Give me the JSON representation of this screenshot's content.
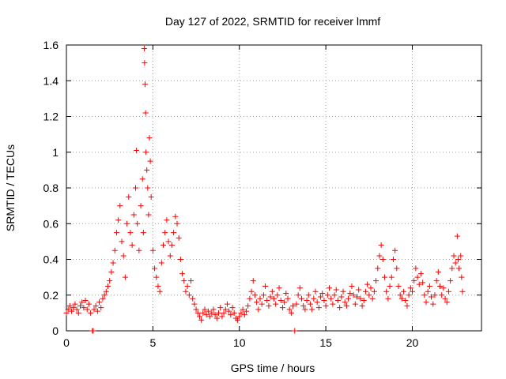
{
  "chart_data": {
    "type": "scatter",
    "title": "Day 127 of 2022, SRMTID for receiver lmmf",
    "xlabel": "GPS time / hours",
    "ylabel": "SRMTID / TECUs",
    "xlim": [
      0,
      24
    ],
    "ylim": [
      0,
      1.6
    ],
    "xticks": [
      0,
      5,
      10,
      15,
      20
    ],
    "xtick_labels": [
      "0",
      "5",
      "10",
      "15",
      "20"
    ],
    "yticks": [
      0,
      0.2,
      0.4,
      0.6,
      0.8,
      1,
      1.2,
      1.4,
      1.6
    ],
    "ytick_labels": [
      "0",
      "0.2",
      "0.4",
      "0.6",
      "0.8",
      "1",
      "1.2",
      "1.4",
      "1.6"
    ],
    "grid": true,
    "marker": "+",
    "color": "#ff0000",
    "series": [
      {
        "name": "SRMTID",
        "points": [
          [
            0.0,
            0.1
          ],
          [
            0.1,
            0.12
          ],
          [
            0.2,
            0.14
          ],
          [
            0.3,
            0.11
          ],
          [
            0.4,
            0.13
          ],
          [
            0.5,
            0.15
          ],
          [
            0.6,
            0.12
          ],
          [
            0.7,
            0.1
          ],
          [
            0.8,
            0.14
          ],
          [
            0.9,
            0.16
          ],
          [
            1.0,
            0.13
          ],
          [
            1.1,
            0.17
          ],
          [
            1.2,
            0.12
          ],
          [
            1.3,
            0.15
          ],
          [
            1.4,
            0.1
          ],
          [
            1.5,
            0.0
          ],
          [
            1.55,
            0.0
          ],
          [
            1.6,
            0.12
          ],
          [
            1.7,
            0.14
          ],
          [
            1.8,
            0.11
          ],
          [
            1.9,
            0.16
          ],
          [
            2.0,
            0.13
          ],
          [
            2.1,
            0.18
          ],
          [
            2.2,
            0.2
          ],
          [
            2.3,
            0.22
          ],
          [
            2.4,
            0.25
          ],
          [
            2.5,
            0.28
          ],
          [
            2.6,
            0.33
          ],
          [
            2.7,
            0.38
          ],
          [
            2.8,
            0.45
          ],
          [
            2.9,
            0.55
          ],
          [
            3.0,
            0.62
          ],
          [
            3.1,
            0.7
          ],
          [
            3.2,
            0.5
          ],
          [
            3.3,
            0.42
          ],
          [
            3.4,
            0.3
          ],
          [
            3.5,
            0.6
          ],
          [
            3.6,
            0.75
          ],
          [
            3.7,
            0.55
          ],
          [
            3.8,
            0.48
          ],
          [
            3.9,
            0.65
          ],
          [
            4.0,
            0.8
          ],
          [
            4.05,
            1.01
          ],
          [
            4.1,
            0.6
          ],
          [
            4.2,
            0.45
          ],
          [
            4.3,
            0.7
          ],
          [
            4.4,
            0.85
          ],
          [
            4.45,
            0.55
          ],
          [
            4.5,
            1.58
          ],
          [
            4.52,
            1.5
          ],
          [
            4.55,
            1.38
          ],
          [
            4.58,
            1.22
          ],
          [
            4.6,
            1.0
          ],
          [
            4.65,
            0.9
          ],
          [
            4.7,
            0.8
          ],
          [
            4.75,
            0.65
          ],
          [
            4.8,
            1.08
          ],
          [
            4.85,
            0.95
          ],
          [
            4.9,
            0.75
          ],
          [
            5.0,
            0.45
          ],
          [
            5.1,
            0.35
          ],
          [
            5.2,
            0.3
          ],
          [
            5.3,
            0.25
          ],
          [
            5.4,
            0.22
          ],
          [
            5.5,
            0.38
          ],
          [
            5.6,
            0.48
          ],
          [
            5.7,
            0.55
          ],
          [
            5.8,
            0.62
          ],
          [
            5.9,
            0.5
          ],
          [
            6.0,
            0.42
          ],
          [
            6.1,
            0.48
          ],
          [
            6.2,
            0.55
          ],
          [
            6.3,
            0.64
          ],
          [
            6.4,
            0.6
          ],
          [
            6.5,
            0.52
          ],
          [
            6.6,
            0.4
          ],
          [
            6.7,
            0.32
          ],
          [
            6.8,
            0.28
          ],
          [
            6.9,
            0.22
          ],
          [
            7.0,
            0.25
          ],
          [
            7.1,
            0.2
          ],
          [
            7.2,
            0.28
          ],
          [
            7.3,
            0.18
          ],
          [
            7.4,
            0.15
          ],
          [
            7.5,
            0.12
          ],
          [
            7.6,
            0.1
          ],
          [
            7.7,
            0.08
          ],
          [
            7.8,
            0.06
          ],
          [
            7.9,
            0.1
          ],
          [
            8.0,
            0.12
          ],
          [
            8.1,
            0.09
          ],
          [
            8.2,
            0.11
          ],
          [
            8.3,
            0.08
          ],
          [
            8.4,
            0.1
          ],
          [
            8.5,
            0.12
          ],
          [
            8.6,
            0.09
          ],
          [
            8.7,
            0.07
          ],
          [
            8.8,
            0.1
          ],
          [
            8.9,
            0.13
          ],
          [
            9.0,
            0.08
          ],
          [
            9.1,
            0.1
          ],
          [
            9.2,
            0.12
          ],
          [
            9.3,
            0.15
          ],
          [
            9.4,
            0.11
          ],
          [
            9.5,
            0.09
          ],
          [
            9.6,
            0.13
          ],
          [
            9.7,
            0.1
          ],
          [
            9.8,
            0.07
          ],
          [
            9.9,
            0.06
          ],
          [
            10.0,
            0.08
          ],
          [
            10.1,
            0.1
          ],
          [
            10.2,
            0.12
          ],
          [
            10.3,
            0.09
          ],
          [
            10.4,
            0.11
          ],
          [
            10.5,
            0.14
          ],
          [
            10.6,
            0.18
          ],
          [
            10.7,
            0.22
          ],
          [
            10.8,
            0.28
          ],
          [
            10.9,
            0.2
          ],
          [
            11.0,
            0.16
          ],
          [
            11.1,
            0.12
          ],
          [
            11.2,
            0.18
          ],
          [
            11.3,
            0.15
          ],
          [
            11.4,
            0.2
          ],
          [
            11.5,
            0.25
          ],
          [
            11.6,
            0.17
          ],
          [
            11.7,
            0.14
          ],
          [
            11.8,
            0.19
          ],
          [
            11.9,
            0.22
          ],
          [
            12.0,
            0.18
          ],
          [
            12.1,
            0.15
          ],
          [
            12.2,
            0.2
          ],
          [
            12.3,
            0.24
          ],
          [
            12.4,
            0.17
          ],
          [
            12.5,
            0.13
          ],
          [
            12.6,
            0.16
          ],
          [
            12.7,
            0.21
          ],
          [
            12.8,
            0.18
          ],
          [
            12.9,
            0.12
          ],
          [
            13.0,
            0.1
          ],
          [
            13.1,
            0.14
          ],
          [
            13.2,
            0.0
          ],
          [
            13.3,
            0.15
          ],
          [
            13.4,
            0.2
          ],
          [
            13.5,
            0.24
          ],
          [
            13.6,
            0.18
          ],
          [
            13.7,
            0.14
          ],
          [
            13.8,
            0.12
          ],
          [
            13.9,
            0.17
          ],
          [
            14.0,
            0.2
          ],
          [
            14.1,
            0.15
          ],
          [
            14.2,
            0.12
          ],
          [
            14.3,
            0.18
          ],
          [
            14.4,
            0.22
          ],
          [
            14.5,
            0.16
          ],
          [
            14.6,
            0.13
          ],
          [
            14.7,
            0.19
          ],
          [
            14.8,
            0.21
          ],
          [
            14.9,
            0.17
          ],
          [
            15.0,
            0.14
          ],
          [
            15.1,
            0.2
          ],
          [
            15.2,
            0.24
          ],
          [
            15.3,
            0.18
          ],
          [
            15.4,
            0.15
          ],
          [
            15.5,
            0.2
          ],
          [
            15.6,
            0.23
          ],
          [
            15.7,
            0.17
          ],
          [
            15.8,
            0.13
          ],
          [
            15.9,
            0.19
          ],
          [
            16.0,
            0.22
          ],
          [
            16.1,
            0.16
          ],
          [
            16.2,
            0.14
          ],
          [
            16.3,
            0.18
          ],
          [
            16.4,
            0.21
          ],
          [
            16.5,
            0.25
          ],
          [
            16.6,
            0.2
          ],
          [
            16.7,
            0.15
          ],
          [
            16.8,
            0.19
          ],
          [
            16.9,
            0.23
          ],
          [
            17.0,
            0.18
          ],
          [
            17.1,
            0.14
          ],
          [
            17.2,
            0.17
          ],
          [
            17.3,
            0.22
          ],
          [
            17.4,
            0.26
          ],
          [
            17.5,
            0.2
          ],
          [
            17.6,
            0.24
          ],
          [
            17.7,
            0.18
          ],
          [
            17.8,
            0.22
          ],
          [
            17.9,
            0.28
          ],
          [
            18.0,
            0.35
          ],
          [
            18.1,
            0.42
          ],
          [
            18.2,
            0.48
          ],
          [
            18.3,
            0.4
          ],
          [
            18.4,
            0.3
          ],
          [
            18.5,
            0.22
          ],
          [
            18.6,
            0.18
          ],
          [
            18.7,
            0.25
          ],
          [
            18.8,
            0.3
          ],
          [
            18.9,
            0.4
          ],
          [
            19.0,
            0.45
          ],
          [
            19.1,
            0.35
          ],
          [
            19.2,
            0.25
          ],
          [
            19.3,
            0.2
          ],
          [
            19.4,
            0.18
          ],
          [
            19.5,
            0.22
          ],
          [
            19.6,
            0.17
          ],
          [
            19.7,
            0.14
          ],
          [
            19.8,
            0.2
          ],
          [
            19.9,
            0.24
          ],
          [
            20.0,
            0.22
          ],
          [
            20.1,
            0.28
          ],
          [
            20.2,
            0.35
          ],
          [
            20.3,
            0.3
          ],
          [
            20.4,
            0.26
          ],
          [
            20.5,
            0.32
          ],
          [
            20.6,
            0.27
          ],
          [
            20.7,
            0.2
          ],
          [
            20.8,
            0.16
          ],
          [
            20.9,
            0.22
          ],
          [
            21.0,
            0.25
          ],
          [
            21.1,
            0.19
          ],
          [
            21.2,
            0.15
          ],
          [
            21.3,
            0.2
          ],
          [
            21.4,
            0.28
          ],
          [
            21.5,
            0.33
          ],
          [
            21.6,
            0.25
          ],
          [
            21.7,
            0.2
          ],
          [
            21.8,
            0.24
          ],
          [
            21.9,
            0.18
          ],
          [
            22.0,
            0.16
          ],
          [
            22.1,
            0.22
          ],
          [
            22.2,
            0.28
          ],
          [
            22.3,
            0.35
          ],
          [
            22.4,
            0.42
          ],
          [
            22.5,
            0.38
          ],
          [
            22.6,
            0.53
          ],
          [
            22.65,
            0.4
          ],
          [
            22.7,
            0.35
          ],
          [
            22.8,
            0.42
          ],
          [
            22.85,
            0.3
          ],
          [
            22.9,
            0.22
          ]
        ]
      }
    ]
  }
}
